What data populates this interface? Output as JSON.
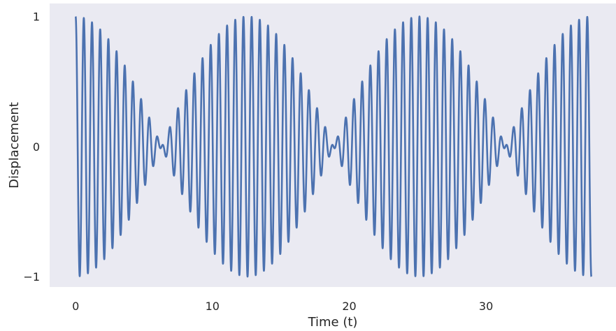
{
  "chart_data": {
    "type": "line",
    "title": "",
    "xlabel": "Time (t)",
    "ylabel": "Displacement",
    "xlim": [
      -1.9,
      39.5
    ],
    "ylim": [
      -1.08,
      1.1
    ],
    "x_ticks": [
      0,
      10,
      20,
      30
    ],
    "x_tick_labels": [
      "0",
      "10",
      "20",
      "30"
    ],
    "y_ticks": [
      -1,
      0,
      1
    ],
    "y_tick_labels": [
      "−1",
      "0",
      "1"
    ],
    "grid": false,
    "legend": "none",
    "series": [
      {
        "function": "cos(10.5*t)*cos(0.25*t)",
        "x_start": 0,
        "x_end": 37.7,
        "color": "#4c72b0"
      }
    ],
    "colors": {
      "plot_background": "#eaeaf2",
      "line": "#4c72b0",
      "text": "#262626"
    }
  }
}
